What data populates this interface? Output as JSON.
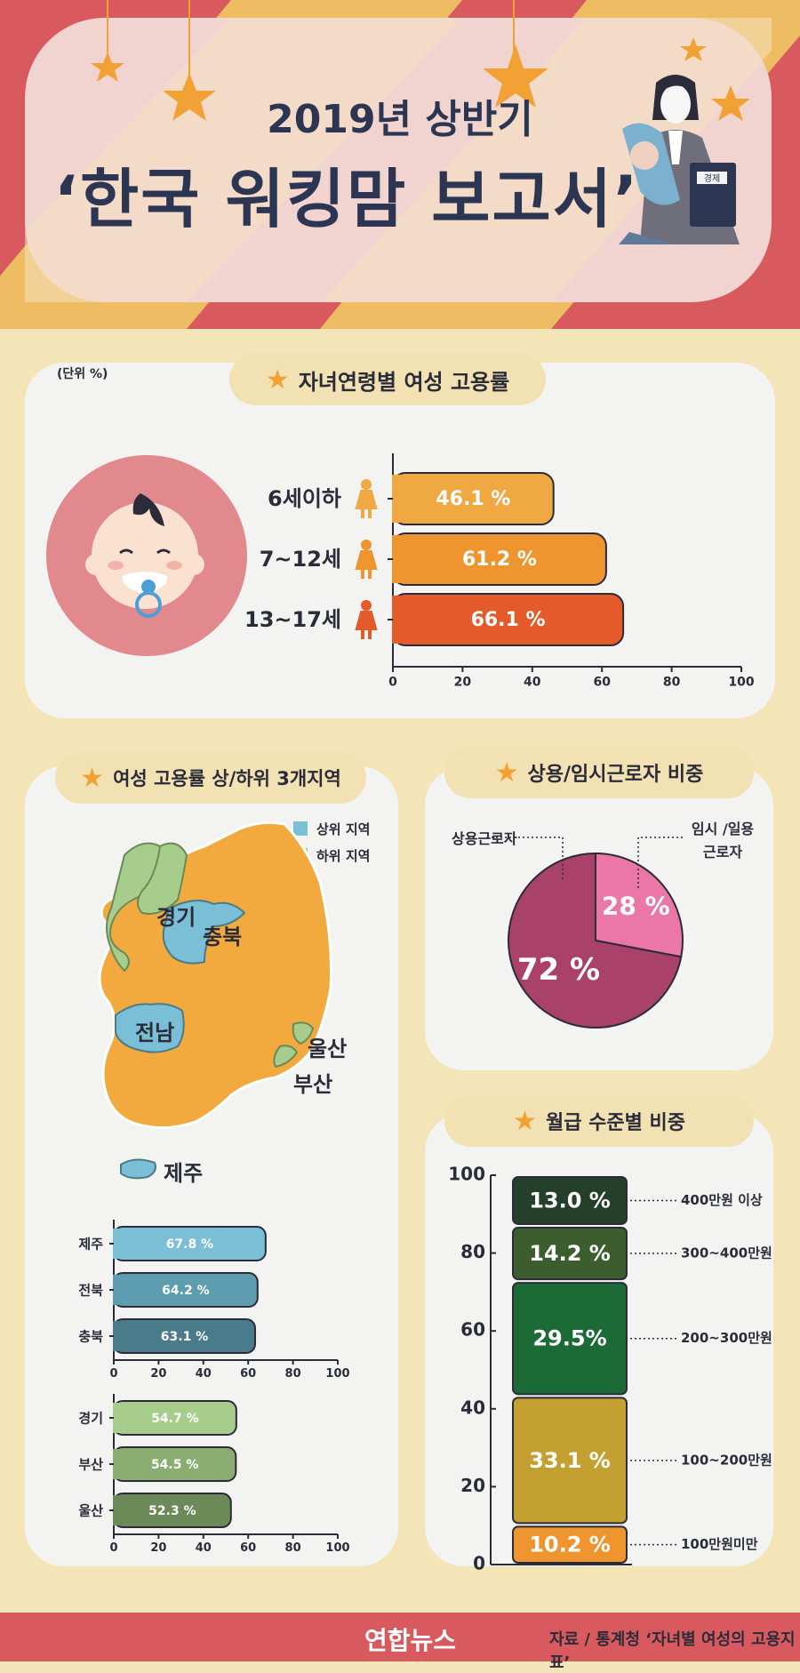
{
  "header": {
    "year_line": "2019년 상반기",
    "title": "‘한국 워킹맘 보고서’",
    "badge": "경제"
  },
  "unit_note": "(단위 %)",
  "chart_data": [
    {
      "type": "bar",
      "title": "자녀연령별 여성 고용률",
      "categories": [
        "6세이하",
        "7~12세",
        "13~17세"
      ],
      "values": [
        46.1,
        61.2,
        66.1
      ],
      "value_labels": [
        "46.1 %",
        "61.2 %",
        "66.1 %"
      ],
      "xlim": [
        0,
        100
      ],
      "ticks": [
        "0",
        "20",
        "40",
        "60",
        "80",
        "100"
      ],
      "colors": [
        "#f0a843",
        "#ef952f",
        "#e55a2b"
      ]
    },
    {
      "type": "bar",
      "title": "여성 고용률 상/하위 3개지역",
      "legend": [
        "상위 지역",
        "하위 지역"
      ],
      "legend_colors": [
        "#7bbfd6",
        "#a7cd8d"
      ],
      "map_labels": [
        "경기",
        "충북",
        "전남",
        "울산",
        "부산",
        "제주"
      ],
      "groups": [
        {
          "name": "상위 지역",
          "categories": [
            "제주",
            "전북",
            "충북"
          ],
          "values": [
            67.8,
            64.2,
            63.1
          ],
          "value_labels": [
            "67.8 %",
            "64.2 %",
            "63.1 %"
          ],
          "colors": [
            "#7bbfd6",
            "#5e9caf",
            "#4a7b8a"
          ]
        },
        {
          "name": "하위 지역",
          "categories": [
            "경기",
            "부산",
            "울산"
          ],
          "values": [
            54.7,
            54.5,
            52.3
          ],
          "value_labels": [
            "54.7 %",
            "54.5 %",
            "52.3 %"
          ],
          "colors": [
            "#a7cd8d",
            "#8aad71",
            "#6b8a57"
          ]
        }
      ],
      "xlim": [
        0,
        100
      ],
      "ticks": [
        "0",
        "20",
        "40",
        "60",
        "80",
        "100"
      ]
    },
    {
      "type": "pie",
      "title": "상용/임시근로자 비중",
      "categories": [
        "상용근로자",
        "임시 /일용 근로자"
      ],
      "values": [
        72,
        28
      ],
      "value_labels": [
        "72 %",
        "28 %"
      ],
      "colors": [
        "#a94168",
        "#ea77a5"
      ]
    },
    {
      "type": "bar",
      "stacked": true,
      "title": "월급 수준별 비중",
      "categories": [
        "100만원미만",
        "100~200만원",
        "200~300만원",
        "300~400만원",
        "400만원 이상"
      ],
      "values": [
        10.2,
        33.1,
        29.5,
        14.2,
        13.0
      ],
      "value_labels": [
        "10.2 %",
        "33.1 %",
        "29.5%",
        "14.2 %",
        "13.0 %"
      ],
      "colors": [
        "#ef952f",
        "#c4a030",
        "#1c6b37",
        "#3c5e2e",
        "#24402a"
      ],
      "ylim": [
        0,
        100
      ],
      "ticks": [
        "0",
        "20",
        "40",
        "60",
        "80",
        "100"
      ]
    }
  ],
  "footer": {
    "logo": "연합뉴스",
    "source": "자료 / 통계청 ‘자녀별 여성의 고용지표’"
  }
}
